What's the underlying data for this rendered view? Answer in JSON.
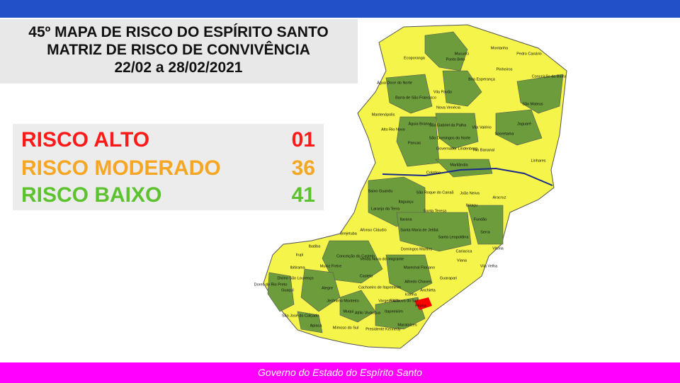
{
  "header": {
    "title_lines": [
      "45º MAPA DE RISCO DO ESPÍRITO SANTO",
      "MATRIZ DE RISCO DE CONVIVÊNCIA",
      "22/02 a 28/02/2021"
    ]
  },
  "risk_summary": [
    {
      "label": "RISCO ALTO",
      "count": "01"
    },
    {
      "label": "RISCO MODERADO",
      "count": "36"
    },
    {
      "label": "RISCO BAIXO",
      "count": "41"
    }
  ],
  "map": {
    "municipalities": [
      "Mucurici",
      "Montanha",
      "Pedro Canário",
      "Ecoporanga",
      "Ponto Belo",
      "Pinheiros",
      "Conceição da Barra",
      "Boa Esperança",
      "Água Doce do Norte",
      "Vila Pavão",
      "Barra de São Francisco",
      "Nova Venécia",
      "São Mateus",
      "Mantenópolis",
      "Águia Branca",
      "São Gabriel da Palha",
      "Vila Valério",
      "Sooretama",
      "Jaguaré",
      "Alto Rio Novo",
      "São Domingos do Norte",
      "Pancas",
      "Governador Lindenberg",
      "Rio Bananal",
      "Linhares",
      "Marilândia",
      "Colatina",
      "Baixo Guandu",
      "São Roque do Canaã",
      "João Neiva",
      "Aracruz",
      "Ibiraçu",
      "Laranja da Terra",
      "Itaguaçu",
      "Santa Teresa",
      "Fundão",
      "Itarana",
      "Serra",
      "Afonso Cláudio",
      "Santa Maria de Jetibá",
      "Santa Leopoldina",
      "Brejetuba",
      "Vitória",
      "Ibatiba",
      "Cariacica",
      "Conceição do Castelo",
      "Domingos Martins",
      "Irupi",
      "Venda Nova do Imigrante",
      "Viana",
      "Vila Velha",
      "Ibitirama",
      "Muniz Freire",
      "Marechal Floriano",
      "Castelo",
      "Divino São Lourenço",
      "Dores do Rio Preto",
      "Alfredo Chaves",
      "Guarapari",
      "Alegre",
      "Cachoeiro de Itapemirim",
      "Vargem Alta",
      "Anchieta",
      "Guaçuí",
      "Jerônimo Monteiro",
      "Rio Novo do Sul",
      "Iconha",
      "Piúma",
      "Muqui",
      "Atílio Vivácqua",
      "Itapemirim",
      "São José do Calçado",
      "Apiacá",
      "Mimoso do Sul",
      "Marataízes",
      "Presidente Kennedy"
    ]
  },
  "footer": {
    "text": "Governo do Estado do Espírito Santo"
  }
}
